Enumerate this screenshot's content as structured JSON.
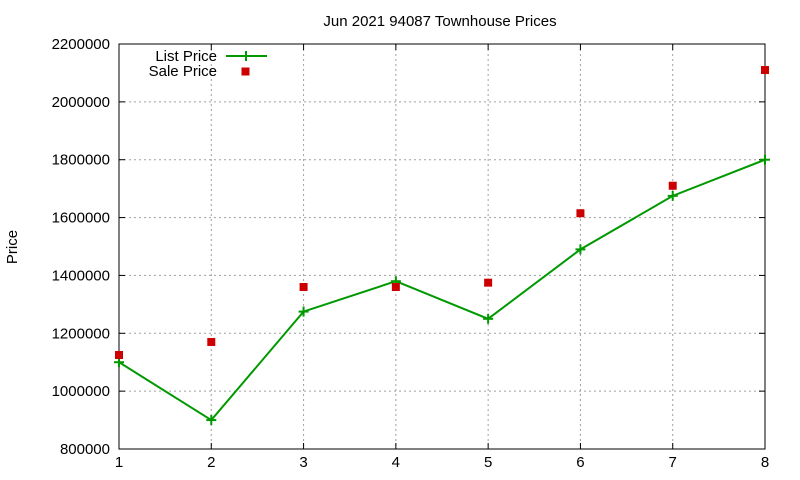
{
  "chart_data": {
    "type": "line",
    "title": "Jun 2021 94087 Townhouse Prices",
    "xlabel": "",
    "ylabel": "Price",
    "x": [
      1,
      2,
      3,
      4,
      5,
      6,
      7,
      8
    ],
    "xlim": [
      1,
      8
    ],
    "ylim": [
      800000,
      2200000
    ],
    "x_ticks": [
      1,
      2,
      3,
      4,
      5,
      6,
      7,
      8
    ],
    "y_ticks": [
      800000,
      1000000,
      1200000,
      1400000,
      1600000,
      1800000,
      2000000,
      2200000
    ],
    "grid": true,
    "legend_position": "top-left",
    "series": [
      {
        "name": "List Price",
        "style": "line-points",
        "color": "#009900",
        "marker": "plus",
        "values": [
          1100000,
          900000,
          1275000,
          1380000,
          1250000,
          1490000,
          1675000,
          1800000
        ]
      },
      {
        "name": "Sale Price",
        "style": "points",
        "color": "#cc0000",
        "marker": "square",
        "values": [
          1125000,
          1170000,
          1360000,
          1360000,
          1375000,
          1615000,
          1710000,
          2110000
        ]
      }
    ]
  }
}
